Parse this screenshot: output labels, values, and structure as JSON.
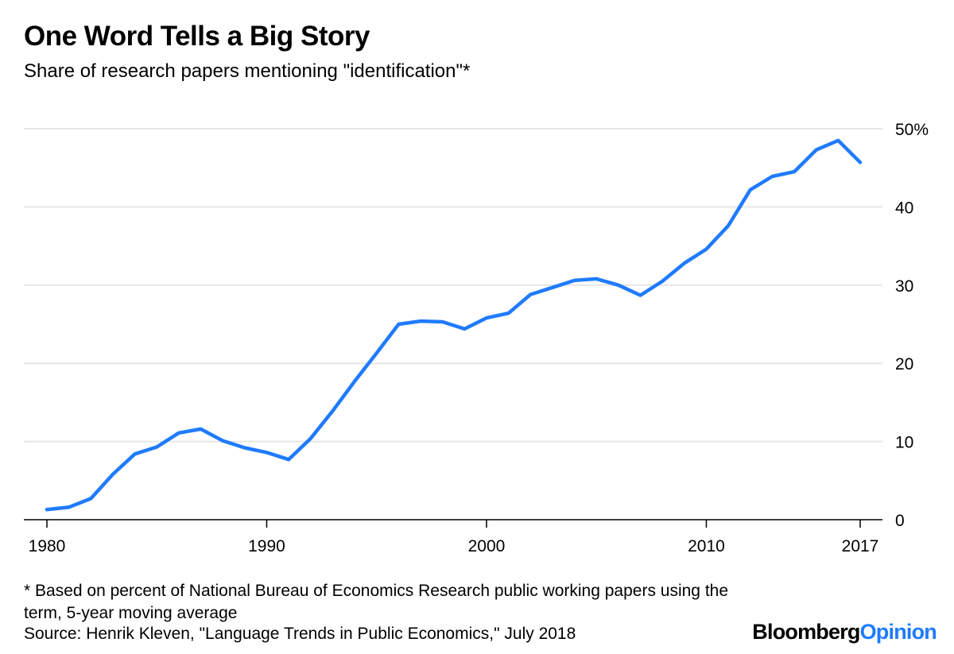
{
  "header": {
    "title": "One Word Tells a Big Story",
    "subtitle": "Share of research papers mentioning \"identification\"*"
  },
  "footer": {
    "footnote": "* Based on percent of National Bureau of Economics Research public working papers using the term, 5-year moving average",
    "source": "Source: Henrik Kleven, \"Language Trends in Public Economics,\" July 2018",
    "brand_part1": "Bloomberg",
    "brand_part2": "Opinion"
  },
  "colors": {
    "line": "#1f7bff",
    "grid": "#e6e6e6",
    "axis": "#000000",
    "brand_accent": "#1f7bff"
  },
  "chart_data": {
    "type": "line",
    "title": "One Word Tells a Big Story",
    "subtitle": "Share of research papers mentioning \"identification\"*",
    "xlabel": "",
    "ylabel": "",
    "xlim": [
      1980,
      2017
    ],
    "ylim": [
      0,
      50
    ],
    "x_ticks": [
      1980,
      1990,
      2000,
      2010,
      2017
    ],
    "x_tick_labels": [
      "1980",
      "1990",
      "2000",
      "2010",
      "2017"
    ],
    "y_ticks": [
      0,
      10,
      20,
      30,
      40,
      50
    ],
    "y_tick_labels": [
      "0",
      "10",
      "20",
      "30",
      "40",
      "50%"
    ],
    "y_axis_side": "right",
    "grid": true,
    "legend": "none",
    "series": [
      {
        "x": [
          1980,
          1981,
          1982,
          1983,
          1984,
          1985,
          1986,
          1987,
          1988,
          1989,
          1990,
          1991,
          1992,
          1993,
          1994,
          1995,
          1996,
          1997,
          1998,
          1999,
          2000,
          2001,
          2002,
          2003,
          2004,
          2005,
          2006,
          2007,
          2008,
          2009,
          2010,
          2011,
          2012,
          2013,
          2014,
          2015,
          2016,
          2017
        ],
        "values": [
          1.3,
          1.6,
          2.7,
          5.8,
          8.4,
          9.3,
          11.1,
          11.6,
          10.1,
          9.2,
          8.6,
          7.7,
          10.4,
          13.9,
          17.7,
          21.3,
          25.0,
          25.4,
          25.3,
          24.4,
          25.8,
          26.4,
          28.8,
          29.7,
          30.6,
          30.8,
          30.0,
          28.7,
          30.5,
          32.8,
          34.6,
          37.6,
          42.2,
          43.9,
          44.5,
          47.3,
          48.5,
          45.7
        ]
      }
    ]
  }
}
